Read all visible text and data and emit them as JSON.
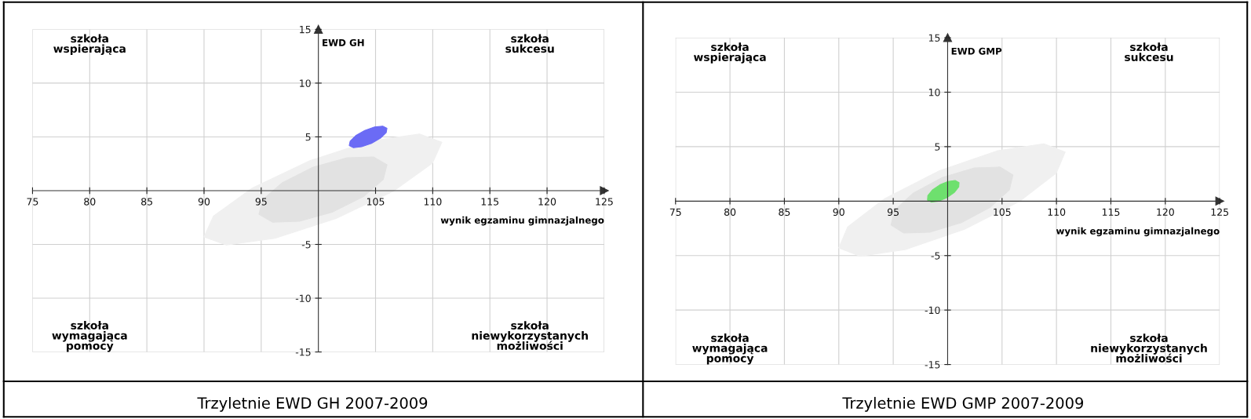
{
  "chart_data": [
    {
      "type": "area",
      "title": "Trzyletnie EWD GH 2007-2009",
      "xlabel": "wynik egzaminu gimnazjalnego",
      "ylabel": "EWD GH",
      "annotations": [
        "szkoła\nwspierająca",
        "szkoła\nsukcesu",
        "szkoła\nwymagająca\npomocy",
        "szkoła\nniewykorzystanych\nmożliwości"
      ],
      "xlim": [
        75,
        125
      ],
      "ylim": [
        -15,
        15
      ],
      "xticks": [
        75,
        80,
        85,
        90,
        95,
        105,
        110,
        115,
        120,
        125
      ],
      "yticks": [
        -15,
        -10,
        -5,
        5,
        10,
        15
      ],
      "grid": true,
      "series": [
        {
          "color": "#f0f0f0",
          "x": [
            110.8,
            108.84,
            104.61,
            99.26,
            94.21,
            90.82,
            90.0,
            91.96,
            96.19,
            101.54,
            106.59,
            109.98
          ],
          "values": [
            4.5,
            5.26,
            4.63,
            2.79,
            0.23,
            -2.37,
            -4.3,
            -5.06,
            -4.43,
            -2.59,
            -0.03,
            2.57
          ]
        },
        {
          "color": "#e2e2e2",
          "x": [
            106.0,
            104.82,
            102.46,
            99.55,
            96.86,
            95.12,
            94.8,
            95.98,
            98.34,
            101.26,
            103.94,
            105.68
          ],
          "values": [
            2.4,
            3.13,
            3.05,
            2.18,
            0.75,
            -0.85,
            -2.2,
            -2.93,
            -2.85,
            -1.98,
            -0.55,
            1.05
          ]
        },
        {
          "color": "#6b6bf5",
          "x": [
            106.0,
            105.63,
            104.92,
            104.06,
            103.27,
            102.78,
            102.7,
            103.07,
            103.78,
            104.64,
            105.43,
            105.93
          ],
          "values": [
            5.8,
            6.0,
            5.92,
            5.6,
            5.12,
            4.61,
            4.2,
            4.0,
            4.08,
            4.4,
            4.88,
            5.39
          ]
        }
      ]
    },
    {
      "type": "area",
      "title": "Trzyletnie EWD GMP 2007-2009",
      "xlabel": "wynik egzaminu gimnazjalnego",
      "ylabel": "EWD GMP",
      "annotations": [
        "szkoła\nwspierająca",
        "szkoła\nsukcesu",
        "szkoła\nwymagająca\npomocy",
        "szkoła\nniewykorzystanych\nmożliwości"
      ],
      "xlim": [
        75,
        125
      ],
      "ylim": [
        -15,
        15
      ],
      "xticks": [
        75,
        80,
        85,
        90,
        95,
        105,
        110,
        115,
        120,
        125
      ],
      "yticks": [
        -15,
        -10,
        -5,
        5,
        10,
        15
      ],
      "grid": true,
      "series": [
        {
          "color": "#f0f0f0",
          "x": [
            110.8,
            108.84,
            104.61,
            99.26,
            94.21,
            90.82,
            90.0,
            91.96,
            96.19,
            101.54,
            106.59,
            109.98
          ],
          "values": [
            4.5,
            5.26,
            4.63,
            2.79,
            0.23,
            -2.37,
            -4.3,
            -5.06,
            -4.43,
            -2.59,
            -0.03,
            2.57
          ]
        },
        {
          "color": "#e2e2e2",
          "x": [
            106.0,
            104.82,
            102.46,
            99.55,
            96.86,
            95.12,
            94.8,
            95.98,
            98.34,
            101.26,
            103.94,
            105.68
          ],
          "values": [
            2.4,
            3.13,
            3.05,
            2.18,
            0.75,
            -0.85,
            -2.2,
            -2.93,
            -2.85,
            -1.98,
            -0.55,
            1.05
          ]
        },
        {
          "color": "#6ee06e",
          "x": [
            101.05,
            100.69,
            100.04,
            99.28,
            98.59,
            98.18,
            98.15,
            98.51,
            99.16,
            99.92,
            100.61,
            101.02
          ],
          "values": [
            1.7,
            1.89,
            1.81,
            1.49,
            1.01,
            0.5,
            0.1,
            -0.09,
            -0.01,
            0.31,
            0.79,
            1.3
          ]
        }
      ]
    }
  ]
}
